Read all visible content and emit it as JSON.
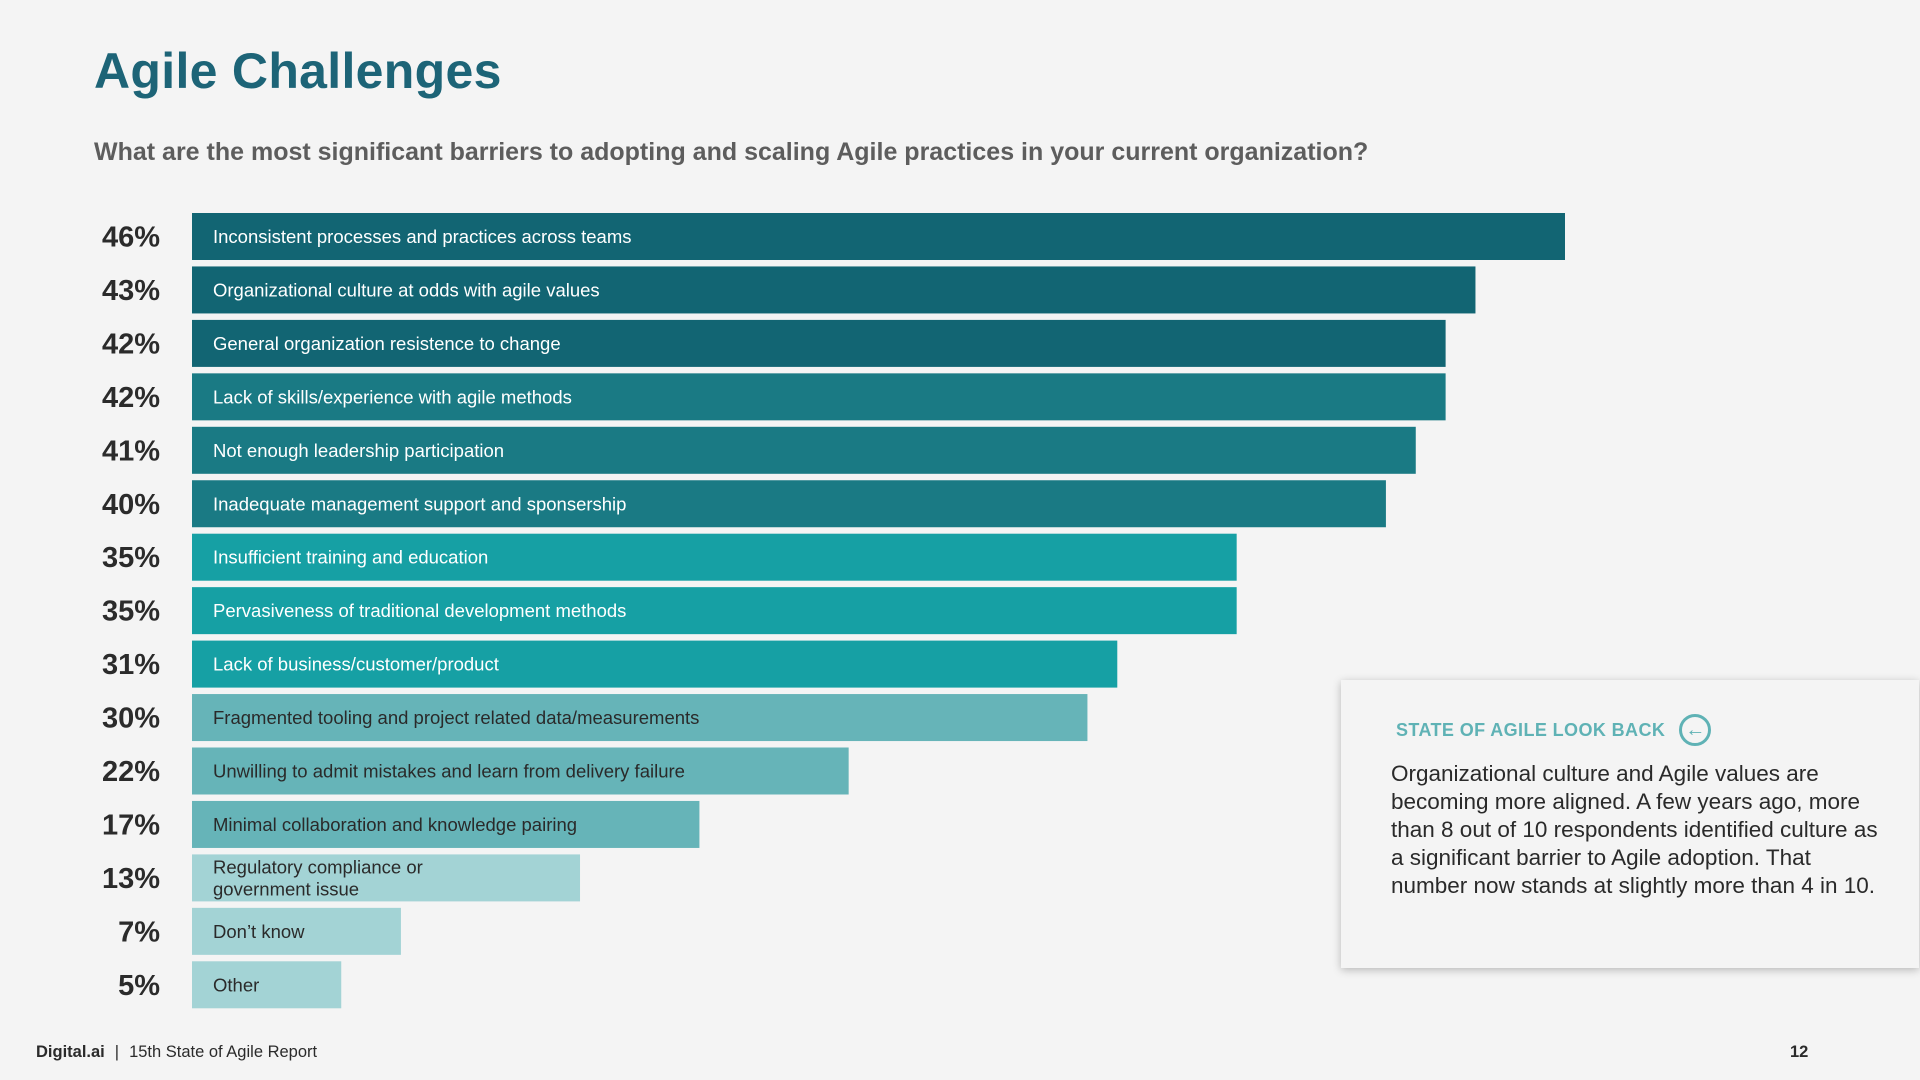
{
  "page": {
    "title": "Agile Challenges",
    "question": "What are the most significant barriers to adopting and scaling Agile practices in your current organization?"
  },
  "chart_data": {
    "type": "bar",
    "orientation": "horizontal",
    "value_suffix": "%",
    "xlim": [
      0,
      46
    ],
    "categories": [
      "Inconsistent processes and practices across teams",
      "Organizational culture at odds with agile values",
      "General organization resistence to change",
      "Lack of skills/experience with agile methods",
      "Not enough leadership participation",
      "Inadequate management support and sponsership",
      "Insufficient training and education",
      "Pervasiveness of traditional development methods",
      "Lack of business/customer/product",
      "Fragmented tooling and project related data/measurements",
      "Unwilling to admit mistakes and learn from delivery failure",
      "Minimal collaboration and knowledge pairing",
      "Regulatory compliance or\ngovernment issue",
      "Don’t know",
      "Other"
    ],
    "values": [
      46,
      43,
      42,
      42,
      41,
      40,
      35,
      35,
      31,
      30,
      22,
      17,
      13,
      7,
      5
    ],
    "bar_colors": [
      "#126573",
      "#126573",
      "#126573",
      "#1a7a84",
      "#1a7a84",
      "#1a7a84",
      "#16a0a4",
      "#16a0a4",
      "#16a0a4",
      "#66b4b8",
      "#66b4b8",
      "#66b4b8",
      "#a3d3d5",
      "#a3d3d5",
      "#a3d3d5"
    ],
    "label_colors": [
      "#ffffff",
      "#ffffff",
      "#ffffff",
      "#ffffff",
      "#ffffff",
      "#ffffff",
      "#ffffff",
      "#ffffff",
      "#ffffff",
      "#2a2a2a",
      "#2a2a2a",
      "#2a2a2a",
      "#2a2a2a",
      "#2a2a2a",
      "#2a2a2a"
    ],
    "value_label_color": "#2b2b2b"
  },
  "callout": {
    "heading": "STATE OF AGILE LOOK BACK",
    "icon": "arrow-left-circle-icon",
    "icon_glyph": "←",
    "body": "Organizational culture and Agile values are becoming more aligned. A few years ago, more than 8 out of 10 respondents identified culture as a significant barrier to Agile adoption. That number now stands at slightly more than 4 in 10."
  },
  "footer": {
    "brand": "Digital.ai",
    "separator": "|",
    "report": "15th State of Agile Report",
    "page_number": "12"
  },
  "colors": {
    "title": "#1d6477",
    "accent": "#5fb2b5",
    "background": "#f4f4f4"
  }
}
